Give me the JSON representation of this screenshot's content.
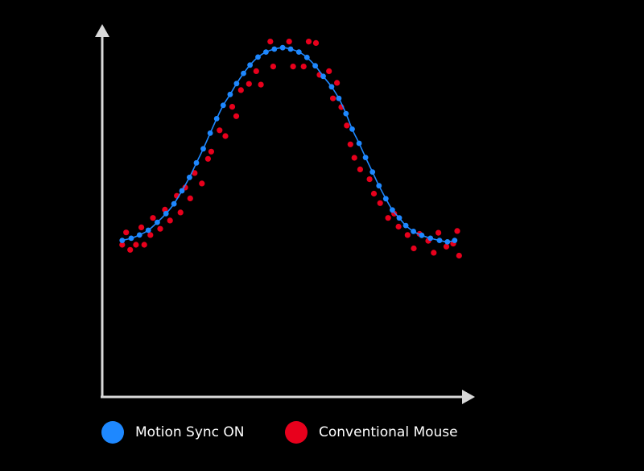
{
  "chart_data": {
    "type": "scatter",
    "title": "",
    "xlabel": "",
    "ylabel": "",
    "grid": false,
    "legend_position": "bottom",
    "xlim": [
      0,
      100
    ],
    "ylim": [
      0,
      100
    ],
    "series": [
      {
        "name": "Motion Sync ON",
        "color": "#1e88ff",
        "marker": "dot",
        "line": true,
        "x": [
          5.5,
          8.0,
          10.3,
          12.7,
          15.2,
          17.6,
          19.8,
          22.0,
          24.1,
          26.0,
          27.9,
          29.8,
          31.6,
          33.4,
          35.3,
          37.1,
          39.0,
          40.8,
          43.0,
          45.2,
          47.5,
          49.8,
          52.0,
          54.3,
          56.5,
          58.8,
          61.0,
          63.3,
          65.3,
          67.3,
          69.0,
          70.9,
          72.7,
          74.6,
          76.4,
          78.3,
          80.1,
          82.0,
          83.8,
          85.9,
          88.2,
          90.6,
          93.1,
          95.3,
          97.3
        ],
        "y": [
          43.2,
          43.8,
          44.7,
          46.0,
          48.2,
          50.6,
          53.3,
          56.9,
          60.6,
          64.6,
          68.5,
          72.8,
          76.8,
          80.5,
          83.5,
          86.5,
          89.3,
          91.6,
          93.8,
          95.2,
          96.0,
          96.4,
          96.0,
          95.2,
          93.7,
          91.4,
          88.5,
          85.6,
          82.4,
          78.2,
          73.9,
          70.0,
          66.1,
          62.1,
          58.3,
          54.7,
          51.6,
          49.4,
          47.3,
          45.7,
          44.6,
          43.8,
          43.2,
          42.8,
          43.2
        ]
      },
      {
        "name": "Conventional Mouse",
        "color": "#e8001c",
        "marker": "dot",
        "line": false,
        "x": [
          5.5,
          6.6,
          7.7,
          9.3,
          10.8,
          11.6,
          13.3,
          14.0,
          16.0,
          17.3,
          18.7,
          20.6,
          21.6,
          22.9,
          24.3,
          25.5,
          27.5,
          29.2,
          30.1,
          32.4,
          34.0,
          35.9,
          37.0,
          38.3,
          40.5,
          42.5,
          43.8,
          46.4,
          47.2,
          51.6,
          52.7,
          55.6,
          57.0,
          59.0,
          60.0,
          62.6,
          63.7,
          64.8,
          66.0,
          67.5,
          68.5,
          69.6,
          71.2,
          73.8,
          75.0,
          76.7,
          78.9,
          80.6,
          81.8,
          84.3,
          86.0,
          87.6,
          90.0,
          91.5,
          92.8,
          95.0,
          96.9,
          98.0,
          98.5
        ],
        "y": [
          42.0,
          45.4,
          40.6,
          42.0,
          46.8,
          42.0,
          44.7,
          49.4,
          46.4,
          51.7,
          48.7,
          55.5,
          50.9,
          57.8,
          54.8,
          61.8,
          58.9,
          65.7,
          67.7,
          73.6,
          72.0,
          80.1,
          77.5,
          84.7,
          86.4,
          89.9,
          86.2,
          98.1,
          91.2,
          98.1,
          91.2,
          91.2,
          98.1,
          97.7,
          88.9,
          89.9,
          82.4,
          86.7,
          80.0,
          74.9,
          69.7,
          66.0,
          62.8,
          60.1,
          56.1,
          53.5,
          49.4,
          50.6,
          47.0,
          44.7,
          41.0,
          45.0,
          43.1,
          39.8,
          45.3,
          41.5,
          42.3,
          45.8,
          39.0
        ]
      }
    ]
  }
}
